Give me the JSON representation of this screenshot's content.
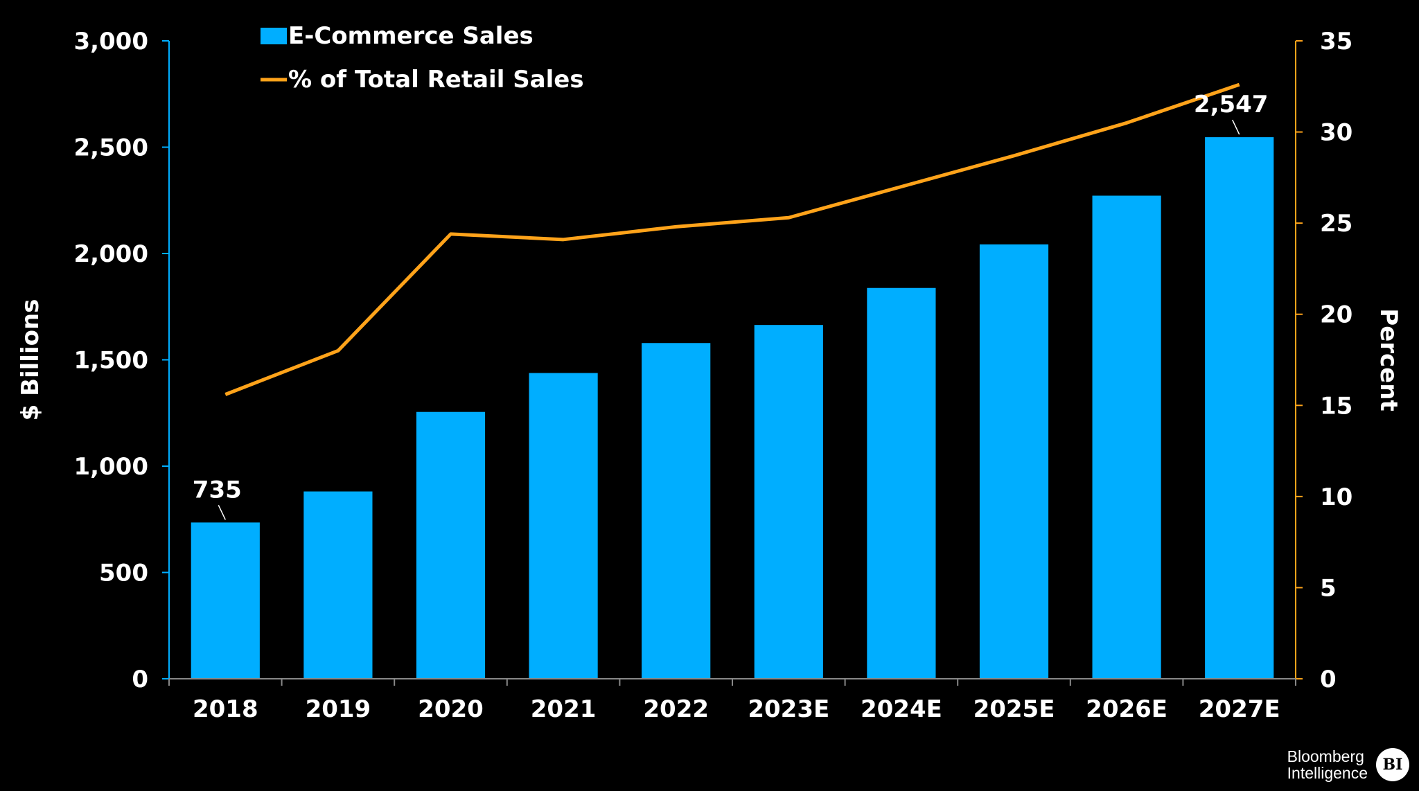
{
  "chart_data": {
    "type": "bar+line",
    "categories": [
      "2018",
      "2019",
      "2020",
      "2021",
      "2022",
      "2023E",
      "2024E",
      "2025E",
      "2026E",
      "2027E"
    ],
    "series": [
      {
        "name": "E-Commerce Sales",
        "type": "bar",
        "axis": "left",
        "color": "#00AEFF",
        "values": [
          735,
          881,
          1255,
          1438,
          1579,
          1664,
          1838,
          2043,
          2272,
          2547
        ]
      },
      {
        "name": "% of Total Retail Sales",
        "type": "line",
        "axis": "right",
        "color": "#FFA31A",
        "values": [
          15.6,
          18.0,
          24.4,
          24.1,
          24.8,
          25.3,
          27.0,
          28.7,
          30.5,
          32.6
        ]
      }
    ],
    "data_labels": [
      {
        "category": "2018",
        "text": "735"
      },
      {
        "category": "2027E",
        "text": "2,547"
      }
    ],
    "ylabel": "$ Billions",
    "y2label": "Percent",
    "ylim": [
      0,
      3000
    ],
    "yticks": [
      "0",
      "500",
      "1,000",
      "1,500",
      "2,000",
      "2,500",
      "3,000"
    ],
    "y2lim": [
      0,
      35
    ],
    "y2ticks": [
      "0",
      "5",
      "10",
      "15",
      "20",
      "25",
      "30",
      "35"
    ],
    "left_axis_color": "#00AEFF",
    "right_axis_color": "#FFA31A",
    "legend_position": "top-left",
    "grid": false,
    "background": "#000000"
  },
  "logo": {
    "line1": "Bloomberg",
    "line2": "Intelligence",
    "badge": "BI"
  }
}
